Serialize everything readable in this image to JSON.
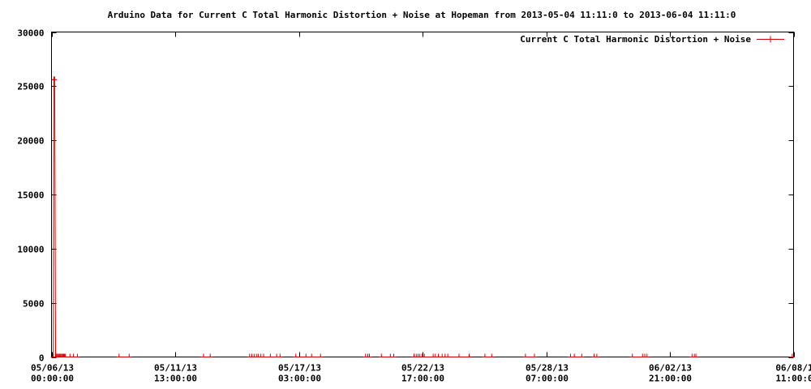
{
  "chart_data": {
    "type": "line",
    "title": "Arduino Data for Current C Total Harmonic Distortion + Noise at Hopeman from 2013-05-04 11:11:0 to 2013-06-04 11:11:0",
    "xlabel": "",
    "ylabel": "",
    "ylim": [
      0,
      30000
    ],
    "y_ticks": [
      "0",
      "5000",
      "10000",
      "15000",
      "20000",
      "25000",
      "30000"
    ],
    "x_ticks": [
      {
        "date": "05/06/13",
        "time": "00:00:00"
      },
      {
        "date": "05/11/13",
        "time": "13:00:00"
      },
      {
        "date": "05/17/13",
        "time": "03:00:00"
      },
      {
        "date": "05/22/13",
        "time": "17:00:00"
      },
      {
        "date": "05/28/13",
        "time": "07:00:00"
      },
      {
        "date": "06/02/13",
        "time": "21:00:00"
      },
      {
        "date": "06/08/1",
        "time": "11:00:0"
      }
    ],
    "xlim_days": [
      0,
      32.9583
    ],
    "legend_position": "top-right",
    "color": "#cc0000",
    "series": [
      {
        "name": "Current C Total Harmonic Distortion + Noise",
        "points": [
          [
            0.08,
            0
          ],
          [
            0.1,
            25600
          ],
          [
            0.14,
            25600
          ],
          [
            0.18,
            0
          ],
          [
            0.22,
            0
          ],
          [
            0.26,
            0
          ],
          [
            0.3,
            0
          ],
          [
            0.34,
            0
          ],
          [
            0.38,
            0
          ],
          [
            0.42,
            0
          ],
          [
            0.46,
            0
          ],
          [
            0.5,
            0
          ],
          [
            0.54,
            0
          ],
          [
            0.58,
            0
          ],
          [
            0.62,
            0
          ],
          [
            0.82,
            0
          ],
          [
            0.97,
            0
          ],
          [
            1.15,
            0
          ],
          [
            3.0,
            0
          ],
          [
            3.45,
            0
          ],
          [
            6.75,
            0
          ],
          [
            7.05,
            0
          ],
          [
            8.8,
            0
          ],
          [
            8.9,
            0
          ],
          [
            9.0,
            0
          ],
          [
            9.1,
            0
          ],
          [
            9.18,
            0
          ],
          [
            9.3,
            0
          ],
          [
            9.42,
            0
          ],
          [
            9.72,
            0
          ],
          [
            10.0,
            0
          ],
          [
            10.15,
            0
          ],
          [
            10.85,
            0
          ],
          [
            11.3,
            0
          ],
          [
            11.55,
            0
          ],
          [
            11.95,
            0
          ],
          [
            13.95,
            0
          ],
          [
            14.05,
            0
          ],
          [
            14.12,
            0
          ],
          [
            14.65,
            0
          ],
          [
            15.05,
            0
          ],
          [
            15.2,
            0
          ],
          [
            16.1,
            0
          ],
          [
            16.2,
            0
          ],
          [
            16.28,
            0
          ],
          [
            16.36,
            0
          ],
          [
            16.45,
            0
          ],
          [
            16.56,
            0
          ],
          [
            16.95,
            0
          ],
          [
            17.05,
            0
          ],
          [
            17.18,
            0
          ],
          [
            17.35,
            0
          ],
          [
            17.48,
            0
          ],
          [
            17.6,
            0
          ],
          [
            18.1,
            0
          ],
          [
            18.55,
            0
          ],
          [
            19.25,
            0
          ],
          [
            19.55,
            0
          ],
          [
            21.05,
            0
          ],
          [
            21.45,
            0
          ],
          [
            23.05,
            0
          ],
          [
            23.22,
            0
          ],
          [
            23.55,
            0
          ],
          [
            24.1,
            0
          ],
          [
            24.22,
            0
          ],
          [
            25.8,
            0
          ],
          [
            26.25,
            0
          ],
          [
            26.35,
            0
          ],
          [
            26.45,
            0
          ],
          [
            28.45,
            0
          ],
          [
            28.55,
            0
          ],
          [
            28.62,
            0
          ],
          [
            32.9,
            0
          ]
        ]
      }
    ]
  }
}
